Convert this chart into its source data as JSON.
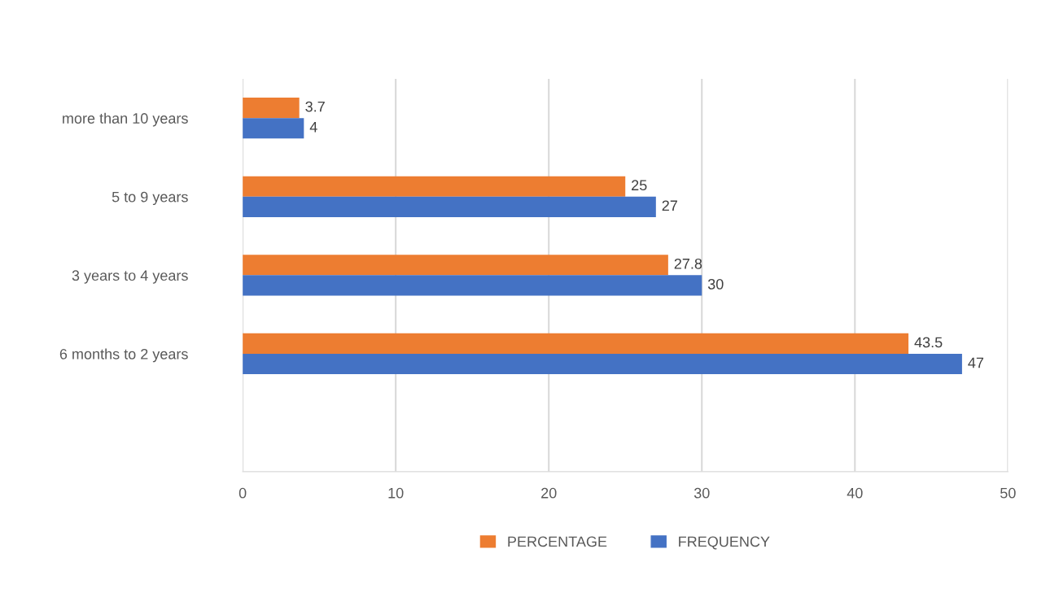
{
  "chart_data": {
    "type": "bar",
    "orientation": "horizontal",
    "categories": [
      "more than 10 years",
      "5 to 9 years",
      "3 years to 4 years",
      "6 months to 2 years"
    ],
    "series": [
      {
        "name": "PERCENTAGE",
        "color": "#ed7d31",
        "values": [
          3.7,
          25,
          27.8,
          43.5
        ]
      },
      {
        "name": "FREQUENCY",
        "color": "#4472c4",
        "values": [
          4,
          27,
          30,
          47
        ]
      }
    ],
    "xlim": [
      0,
      50
    ],
    "xticks": [
      0,
      10,
      20,
      30,
      40,
      50
    ],
    "grid": "x",
    "legend": "bottom",
    "data_labels": true
  }
}
